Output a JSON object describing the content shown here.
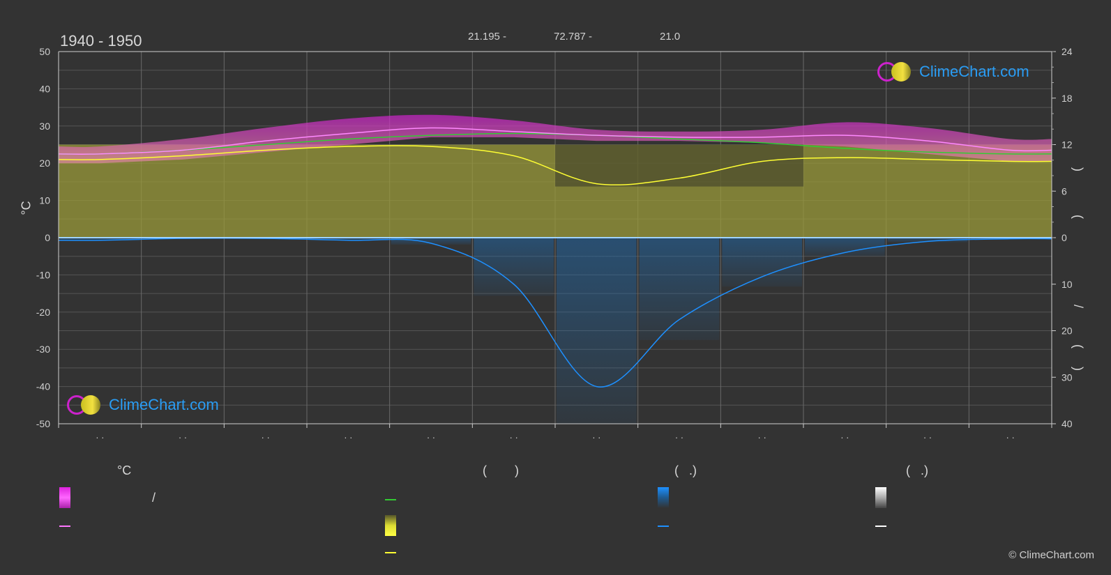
{
  "header": {
    "period": "1940 - 1950",
    "lat": "21.195 -",
    "lon": "72.787 -",
    "elev": "21.0"
  },
  "axes": {
    "left_unit": "°C",
    "left_ticks": [
      "50",
      "40",
      "30",
      "20",
      "10",
      "0",
      "-10",
      "-20",
      "-30",
      "-40",
      "-50"
    ],
    "right_ticks_top": [
      "24",
      "18",
      "12",
      "6",
      "0"
    ],
    "right_ticks_bottom": [
      "10",
      "20",
      "30",
      "40"
    ],
    "right_label_parts": [
      ")",
      "(",
      "/",
      "(",
      ")"
    ]
  },
  "month_labels": [
    "· ·",
    "· ·",
    "· ·",
    "· ·",
    "· ·",
    "· ·",
    "· ·",
    "· ·",
    "· ·",
    "· ·",
    "· ·",
    "· ·"
  ],
  "logos": {
    "top_text": "ClimeChart.com",
    "bottom_text": "ClimeChart.com"
  },
  "legend": {
    "col1_head": "°C",
    "col1_slash": "/",
    "col2_head": "(        )",
    "col3_head": "(   .)",
    "col4_head": "(   .)"
  },
  "copyright": "© ClimeChart.com",
  "colors": {
    "background": "#333333",
    "temp_range": "#cc22cc",
    "temp_mean_line": "#ff77ff",
    "daylight_line": "#33cc33",
    "sunshine_fill": "#b8b83a",
    "sunshine_line": "#ffff33",
    "precip_fill": "#1e6fb8",
    "precip_line": "#1e90ff",
    "snow_line": "#ffffff",
    "brand": "#2a9df4"
  },
  "chart_data": {
    "type": "area",
    "title": "",
    "xlabel": "",
    "ylabel": "°C",
    "ylim": [
      -50,
      50
    ],
    "y2lim_top_hours": [
      0,
      24
    ],
    "y2lim_bottom_mm": [
      0,
      40
    ],
    "x_months": [
      1,
      2,
      3,
      4,
      5,
      6,
      7,
      8,
      9,
      10,
      11,
      12
    ],
    "grid": true,
    "series": [
      {
        "kind": "temp_max_band",
        "values": [
          24.5,
          26.5,
          29.5,
          32,
          33,
          31.5,
          29,
          28.5,
          29,
          31,
          29.5,
          26.5
        ]
      },
      {
        "kind": "temp_min_band",
        "values": [
          20,
          21,
          23,
          25,
          27,
          27,
          26,
          26,
          25.5,
          24.5,
          22.5,
          20.5
        ]
      },
      {
        "kind": "temp_mean_line",
        "values": [
          22.5,
          23.5,
          26,
          28,
          29.5,
          28.5,
          27.5,
          27,
          27,
          27.5,
          26,
          23.5
        ]
      },
      {
        "kind": "daylight_line",
        "values": [
          22.5,
          23.5,
          25,
          26.5,
          27.5,
          28,
          27.5,
          26.5,
          25.5,
          24,
          23,
          22.5
        ]
      },
      {
        "kind": "sunshine_line",
        "values": [
          21,
          22,
          23.5,
          24.5,
          24.5,
          22,
          14.5,
          16,
          20.5,
          21.5,
          21,
          20.5
        ]
      },
      {
        "kind": "sunshine_fill_top",
        "values": [
          25,
          25,
          25,
          25,
          25,
          25,
          25,
          25,
          25,
          25,
          25,
          25
        ]
      },
      {
        "kind": "precip_line",
        "values": [
          -0.7,
          -0.2,
          -0.2,
          -0.7,
          -1.5,
          -12.5,
          -40,
          -22,
          -10.5,
          -4,
          -1,
          -0.3
        ]
      },
      {
        "kind": "snow_line",
        "values": [
          0,
          0,
          0,
          0,
          0,
          0,
          0,
          0,
          0,
          0,
          0,
          0
        ]
      }
    ]
  }
}
